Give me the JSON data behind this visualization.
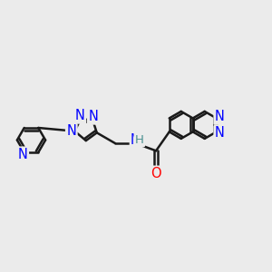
{
  "bg_color": "#ebebeb",
  "bond_color": "#1a1a1a",
  "N_color": "#0000ff",
  "O_color": "#ff0000",
  "H_color": "#4a9090",
  "bond_width": 1.8,
  "dbo": 0.055,
  "font_size": 10.5,
  "fig_w": 3.0,
  "fig_h": 3.0,
  "dpi": 100,
  "xlim": [
    0.0,
    10.0
  ],
  "ylim": [
    3.2,
    7.2
  ]
}
